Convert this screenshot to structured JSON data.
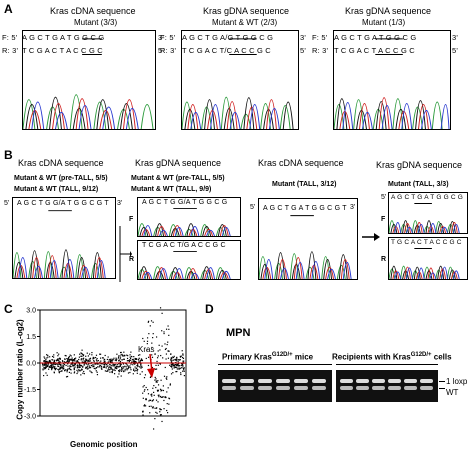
{
  "panels": {
    "a": "A",
    "b": "B",
    "c": "C",
    "d": "D"
  },
  "panel_a": {
    "h1": "Kras cDNA sequence",
    "s1": "Mutant (3/3)",
    "h2": "Kras gDNA sequence",
    "s2": "Mutant & WT (2/3)",
    "h3": "Kras gDNA sequence",
    "s3": "Mutant (1/3)",
    "f1": "F: 5'",
    "f1seq": "A G C T G A T G G C G",
    "f1end": "3'",
    "r1": "R: 3'",
    "r1seq": "T C G A C T A C C G C",
    "r1end": "5'",
    "f2": "F: 5'",
    "f2seq": "A G C T G A/G T G G  C G",
    "f2end": "3'",
    "r2": "R: 3'",
    "r2seq": "T C G A C T/C A C C G C",
    "r2end": "5'",
    "f3": "F: 5'",
    "f3seq": "A G C T G A T G G C G",
    "f3end": "3'",
    "r3": "R: 3'",
    "r3seq": "T C G A C T A C C G C",
    "r3end": "5'"
  },
  "panel_b": {
    "h1": "Kras cDNA sequence",
    "h2": "Kras gDNA sequence",
    "h3": "Kras cDNA sequence",
    "h4": "Kras gDNA sequence",
    "s1a": "Mutant & WT (pre-TALL, 5/5)",
    "s1b": "Mutant & WT  (TALL, 9/12)",
    "s2a": "Mutant & WT (pre-TALL, 5/5)",
    "s2b": "Mutant & WT     (TALL, 9/9)",
    "s3": "Mutant (TALL, 3/12)",
    "s4": "Mutant (TALL, 3/3)",
    "seq1": "A G C T G G/A T G G C G T",
    "seq2f": "A G C T G G/A T G G C G",
    "seq2r": "T C G A C T/G A C C G C",
    "seq3": "A G C T G A T G G C G T",
    "seq4f": "A G C T G A T G G C G",
    "seq4r": "T G C A C T A C C G C",
    "five": "5'",
    "three": "3'",
    "F": "F",
    "R": "R"
  },
  "panel_c": {
    "ylabel": "Copy number ratio (L-og2)",
    "xlabel": "Genomic position",
    "kras": "Kras",
    "yticks": [
      "3.0",
      "1.5",
      "0.0",
      "-1.5",
      "-3.0"
    ]
  },
  "panel_d": {
    "title": "MPN",
    "group1": "Primary Kras",
    "group1_sup": "G12D/+",
    "group1_suffix": " mice",
    "group2": "Recipients with Kras",
    "group2_sup": "G12D/+",
    "group2_suffix": " cells",
    "band1": "1 loxp",
    "band2": "WT"
  },
  "chart_data": {
    "type": "scatter",
    "ylabel": "Copy number ratio (L-og2)",
    "xlabel": "Genomic position",
    "ylim": [
      -3.0,
      3.0
    ],
    "yticks": [
      3.0,
      1.5,
      0.0,
      -1.5,
      -3.0
    ],
    "annotation": "Kras"
  },
  "colors": {
    "A": "#2a9a3a",
    "C": "#2a3ad0",
    "G": "#111111",
    "T": "#d02020",
    "cnv_line": "#cc0000"
  }
}
